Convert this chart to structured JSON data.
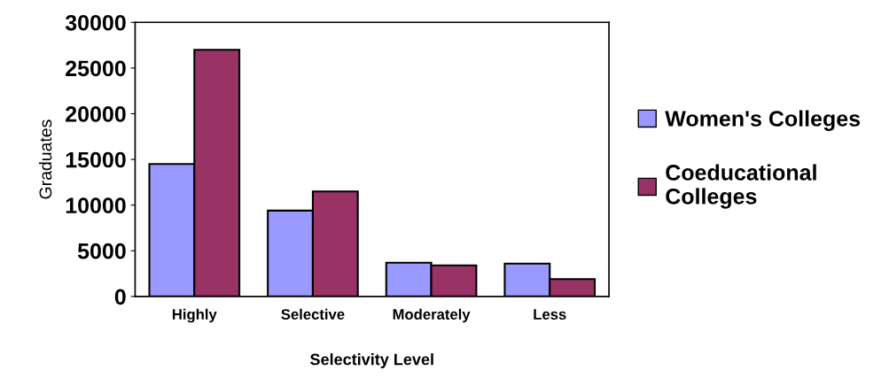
{
  "chart_data": {
    "type": "bar",
    "xlabel": "Selectivity Level",
    "ylabel": "Graduates",
    "categories": [
      "Highly",
      "Selective",
      "Moderately",
      "Less"
    ],
    "series": [
      {
        "name": "Women's Colleges",
        "color": "#9999ff",
        "values": [
          14500,
          9400,
          3700,
          3600
        ]
      },
      {
        "name": "Coeducational\nColleges",
        "color": "#993366",
        "values": [
          27000,
          11500,
          3400,
          1900
        ]
      }
    ],
    "ylim": [
      0,
      30000
    ],
    "yticks": [
      0,
      5000,
      10000,
      15000,
      20000,
      25000,
      30000
    ],
    "grid": false,
    "legend": "right"
  }
}
